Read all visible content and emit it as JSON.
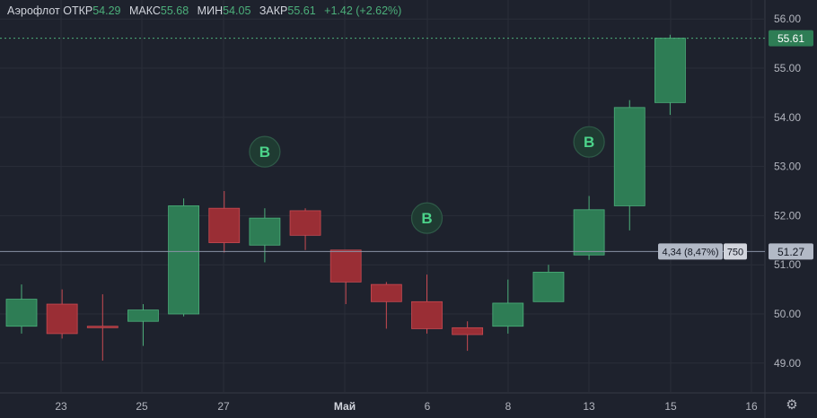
{
  "header": {
    "symbol": "Аэрофлот",
    "open_label": "ОТКР",
    "open_value": "54.29",
    "high_label": "МАКС",
    "high_value": "55.68",
    "low_label": "МИН",
    "low_value": "54.05",
    "close_label": "ЗАКР",
    "close_value": "55.61",
    "change": "+1.42 (+2.62%)"
  },
  "colors": {
    "up": "#2e7d55",
    "up_border": "#4caf7a",
    "down": "#9a2e35",
    "down_border": "#c94a52",
    "background": "#1e222d",
    "grid": "#2a2e39",
    "text": "#b2b5be"
  },
  "chart_data": {
    "type": "candlestick",
    "y_ticks": [
      "49.00",
      "50.00",
      "51.00",
      "52.00",
      "53.00",
      "54.00",
      "55.00",
      "56.00"
    ],
    "ylim": [
      48.7,
      56.3
    ],
    "x_ticks": [
      "23",
      "25",
      "27",
      "Май",
      "6",
      "8",
      "13",
      "15",
      "16"
    ],
    "candles": [
      {
        "o": 49.75,
        "h": 50.6,
        "l": 49.6,
        "c": 50.3
      },
      {
        "o": 50.2,
        "h": 50.5,
        "l": 49.5,
        "c": 49.6
      },
      {
        "o": 49.75,
        "h": 50.4,
        "l": 49.05,
        "c": 49.72
      },
      {
        "o": 49.85,
        "h": 50.2,
        "l": 49.35,
        "c": 50.08
      },
      {
        "o": 50.0,
        "h": 52.35,
        "l": 49.95,
        "c": 52.2
      },
      {
        "o": 52.15,
        "h": 52.5,
        "l": 51.25,
        "c": 51.45
      },
      {
        "o": 51.4,
        "h": 52.15,
        "l": 51.05,
        "c": 51.95
      },
      {
        "o": 52.1,
        "h": 52.15,
        "l": 51.3,
        "c": 51.6
      },
      {
        "o": 51.3,
        "h": 51.3,
        "l": 50.2,
        "c": 50.65
      },
      {
        "o": 50.6,
        "h": 50.65,
        "l": 49.7,
        "c": 50.25
      },
      {
        "o": 50.25,
        "h": 50.8,
        "l": 49.6,
        "c": 49.7
      },
      {
        "o": 49.72,
        "h": 49.85,
        "l": 49.25,
        "c": 49.58
      },
      {
        "o": 49.75,
        "h": 50.7,
        "l": 49.6,
        "c": 50.22
      },
      {
        "o": 50.25,
        "h": 51.0,
        "l": 50.25,
        "c": 50.85
      },
      {
        "o": 51.2,
        "h": 52.4,
        "l": 51.1,
        "c": 52.12
      },
      {
        "o": 52.2,
        "h": 54.35,
        "l": 51.7,
        "c": 54.2
      },
      {
        "o": 54.3,
        "h": 55.68,
        "l": 54.05,
        "c": 55.61
      }
    ],
    "markers": [
      {
        "candle": 6,
        "label": "B",
        "y": 53.3
      },
      {
        "candle": 10,
        "label": "B",
        "y": 51.95
      },
      {
        "candle": 14,
        "label": "B",
        "y": 53.5
      }
    ],
    "last_price": 55.61,
    "last_price_label": "55.61",
    "measure_line": {
      "y": 51.27,
      "label": "51.27",
      "tooltip": "4,34 (8,47%)",
      "volume": "750"
    }
  }
}
